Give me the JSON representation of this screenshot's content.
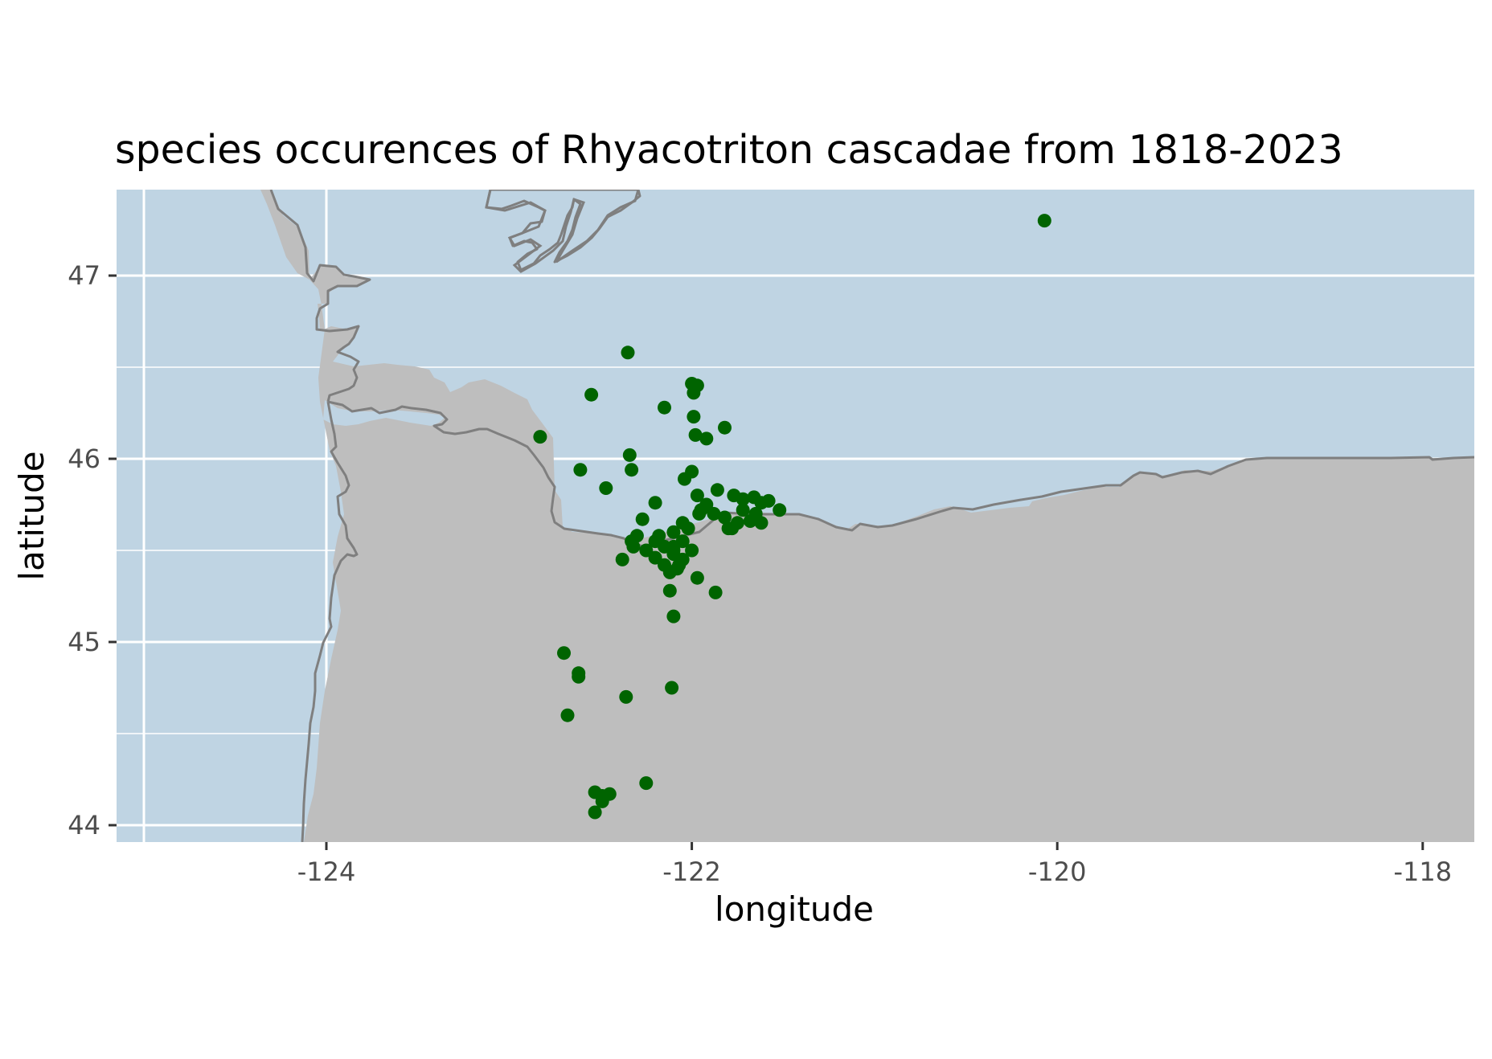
{
  "chart_data": {
    "type": "scatter",
    "title": "species occurences of Rhyacotriton cascadae from 1818-2023",
    "xlabel": "longitude",
    "ylabel": "latitude",
    "xlim": [
      -124.6,
      -117.8
    ],
    "ylim": [
      43.9,
      47.45
    ],
    "x_ticks": [
      -124,
      -122,
      -120,
      -118
    ],
    "x_tick_labels": [
      "-124",
      "-122",
      "-120",
      "-118"
    ],
    "y_ticks": [
      44,
      45,
      46,
      47
    ],
    "y_tick_labels": [
      "44",
      "45",
      "46",
      "47"
    ],
    "grid": true,
    "legend": "none",
    "colors": {
      "points": "#006400",
      "land": "#bebebe",
      "water": "#bfd4e3",
      "border_line": "#7f7f7f",
      "grid_line": "#ffffff",
      "axis_text": "#4d4d4d"
    },
    "series": [
      {
        "x": [
          -120.07,
          -122.35,
          -122.0,
          -121.97,
          -121.99,
          -122.55,
          -122.15,
          -121.99,
          -121.82,
          -121.98,
          -121.92,
          -122.83,
          -122.34,
          -122.61,
          -122.33,
          -122.47,
          -122.0,
          -122.2,
          -122.04,
          -121.97,
          -121.86,
          -121.77,
          -121.72,
          -121.66,
          -121.62,
          -121.52,
          -121.92,
          -121.96,
          -122.27,
          -122.3,
          -122.33,
          -122.1,
          -122.05,
          -122.2,
          -122.15,
          -122.0,
          -121.82,
          -121.75,
          -121.65,
          -121.58,
          -122.38,
          -122.25,
          -122.1,
          -122.05,
          -122.15,
          -122.08,
          -122.12,
          -122.05,
          -122.32,
          -122.18,
          -122.02,
          -122.2,
          -122.1,
          -121.95,
          -121.88,
          -121.72,
          -121.68,
          -121.78,
          -121.62,
          -122.1,
          -122.07,
          -122.12,
          -121.97,
          -121.87,
          -121.8,
          -122.1,
          -122.7,
          -122.62,
          -122.62,
          -122.36,
          -122.11,
          -122.68,
          -122.25,
          -122.53,
          -122.45,
          -122.49,
          -122.49,
          -122.53
        ],
        "y": [
          47.3,
          46.58,
          46.41,
          46.4,
          46.36,
          46.35,
          46.28,
          46.23,
          46.17,
          46.13,
          46.11,
          46.12,
          46.02,
          45.94,
          45.94,
          45.84,
          45.93,
          45.76,
          45.89,
          45.8,
          45.83,
          45.8,
          45.78,
          45.79,
          45.76,
          45.72,
          45.75,
          45.7,
          45.67,
          45.58,
          45.55,
          45.6,
          45.65,
          45.55,
          45.52,
          45.5,
          45.68,
          45.65,
          45.7,
          45.77,
          45.45,
          45.5,
          45.48,
          45.45,
          45.42,
          45.4,
          45.38,
          45.55,
          45.52,
          45.58,
          45.62,
          45.46,
          45.5,
          45.72,
          45.7,
          45.72,
          45.66,
          45.62,
          45.65,
          45.52,
          45.42,
          45.28,
          45.35,
          45.27,
          45.62,
          45.14,
          44.94,
          44.83,
          44.81,
          44.7,
          44.75,
          44.6,
          44.23,
          44.18,
          44.17,
          44.16,
          44.13,
          44.07
        ],
        "note_for_extra": ""
      }
    ]
  }
}
